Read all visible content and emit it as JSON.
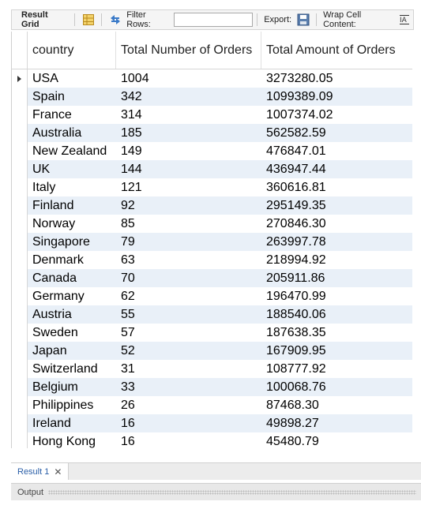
{
  "toolbar": {
    "title": "Result Grid",
    "filter_label": "Filter Rows:",
    "filter_value": "",
    "export_label": "Export:",
    "wrap_label": "Wrap Cell Content:"
  },
  "columns": [
    "country",
    "Total Number of Orders",
    "Total Amount of Orders"
  ],
  "rows": [
    {
      "country": "USA",
      "orders": "1004",
      "amount": "3273280.05"
    },
    {
      "country": "Spain",
      "orders": "342",
      "amount": "1099389.09"
    },
    {
      "country": "France",
      "orders": "314",
      "amount": "1007374.02"
    },
    {
      "country": "Australia",
      "orders": "185",
      "amount": "562582.59"
    },
    {
      "country": "New Zealand",
      "orders": "149",
      "amount": "476847.01"
    },
    {
      "country": "UK",
      "orders": "144",
      "amount": "436947.44"
    },
    {
      "country": "Italy",
      "orders": "121",
      "amount": "360616.81"
    },
    {
      "country": "Finland",
      "orders": "92",
      "amount": "295149.35"
    },
    {
      "country": "Norway",
      "orders": "85",
      "amount": "270846.30"
    },
    {
      "country": "Singapore",
      "orders": "79",
      "amount": "263997.78"
    },
    {
      "country": "Denmark",
      "orders": "63",
      "amount": "218994.92"
    },
    {
      "country": "Canada",
      "orders": "70",
      "amount": "205911.86"
    },
    {
      "country": "Germany",
      "orders": "62",
      "amount": "196470.99"
    },
    {
      "country": "Austria",
      "orders": "55",
      "amount": "188540.06"
    },
    {
      "country": "Sweden",
      "orders": "57",
      "amount": "187638.35"
    },
    {
      "country": "Japan",
      "orders": "52",
      "amount": "167909.95"
    },
    {
      "country": "Switzerland",
      "orders": "31",
      "amount": "108777.92"
    },
    {
      "country": "Belgium",
      "orders": "33",
      "amount": "100068.76"
    },
    {
      "country": "Philippines",
      "orders": "26",
      "amount": "87468.30"
    },
    {
      "country": "Ireland",
      "orders": "16",
      "amount": "49898.27"
    },
    {
      "country": "Hong Kong",
      "orders": "16",
      "amount": "45480.79"
    }
  ],
  "tabs": [
    {
      "label": "Result 1"
    }
  ],
  "output_label": "Output",
  "icons": {
    "grid": "grid-view-icon",
    "refresh": "refresh-arrows-icon",
    "export": "export-disk-icon",
    "wrap": "wrap-text-icon",
    "current_row": "current-row-arrow-icon",
    "close": "close-icon"
  },
  "colors": {
    "alt_row": "#e9f0f8",
    "tab_text": "#2b5fa8",
    "toolbar_bg": "#f5f5f5"
  }
}
